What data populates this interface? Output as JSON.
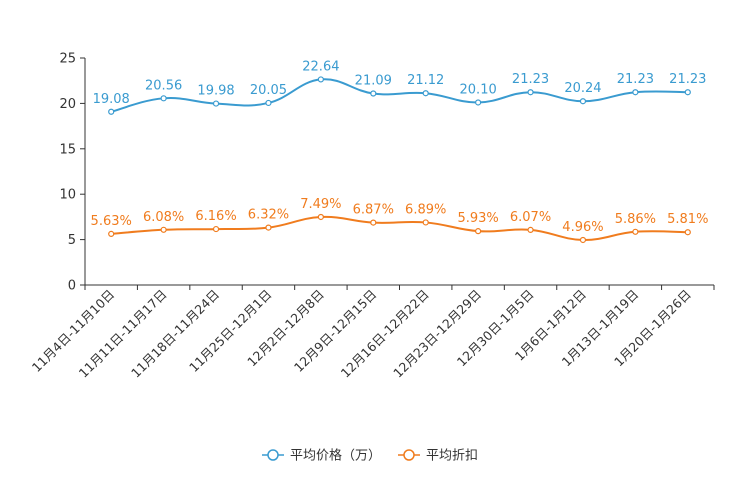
{
  "chart_data": {
    "type": "line",
    "title": "",
    "xlabel": "",
    "ylabel": "",
    "ylim": [
      0,
      25
    ],
    "yticks": [
      "0",
      "5",
      "10",
      "15",
      "20",
      "25"
    ],
    "grid": false,
    "legend_position": "bottom",
    "categories": [
      "11月4日-11月10日",
      "11月11日-11月17日",
      "11月18日-11月24日",
      "11月25日-12月1日",
      "12月2日-12月8日",
      "12月9日-12月15日",
      "12月16日-12月22日",
      "12月23日-12月29日",
      "12月30日-1月5日",
      "1月6日-1月12日",
      "1月13日-1月19日",
      "1月20日-1月26日"
    ],
    "series": [
      {
        "name": "平均价格（万）",
        "color": "#3a9bd0",
        "values": [
          19.08,
          20.56,
          19.98,
          20.05,
          22.64,
          21.09,
          21.12,
          20.1,
          21.23,
          20.24,
          21.23,
          21.23
        ],
        "labels": [
          "19.08",
          "20.56",
          "19.98",
          "20.05",
          "22.64",
          "21.09",
          "21.12",
          "20.10",
          "21.23",
          "20.24",
          "21.23",
          "21.23"
        ]
      },
      {
        "name": "平均折扣",
        "color": "#f07c1e",
        "values": [
          5.63,
          6.08,
          6.16,
          6.32,
          7.49,
          6.87,
          6.89,
          5.93,
          6.07,
          4.96,
          5.86,
          5.81
        ],
        "labels": [
          "5.63%",
          "6.08%",
          "6.16%",
          "6.32%",
          "7.49%",
          "6.87%",
          "6.89%",
          "5.93%",
          "6.07%",
          "4.96%",
          "5.86%",
          "5.81%"
        ]
      }
    ]
  }
}
